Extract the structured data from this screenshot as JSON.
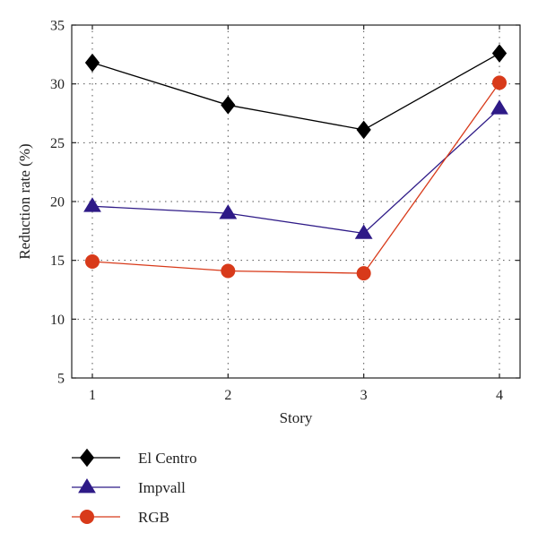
{
  "chart_data": {
    "type": "line",
    "xlabel": "Story",
    "ylabel": "Reduction rate (%)",
    "categories": [
      "1",
      "2",
      "3",
      "4"
    ],
    "x": [
      1,
      2,
      3,
      4
    ],
    "xlim": [
      1,
      4
    ],
    "ylim": [
      5,
      35
    ],
    "yticks": [
      "5",
      "10",
      "15",
      "20",
      "25",
      "30",
      "35"
    ],
    "grid": true,
    "legend_position": "bottom-left, outside plot",
    "series": [
      {
        "name": "El Centro",
        "values": [
          31.8,
          28.2,
          26.1,
          32.6
        ],
        "color": "#000000",
        "marker": "diamond"
      },
      {
        "name": "Impvall",
        "values": [
          19.6,
          19.0,
          17.3,
          27.9
        ],
        "color": "#2e1a87",
        "marker": "triangle"
      },
      {
        "name": "RGB",
        "values": [
          14.9,
          14.1,
          13.9,
          30.1
        ],
        "color": "#d83a1a",
        "marker": "circle"
      }
    ]
  }
}
